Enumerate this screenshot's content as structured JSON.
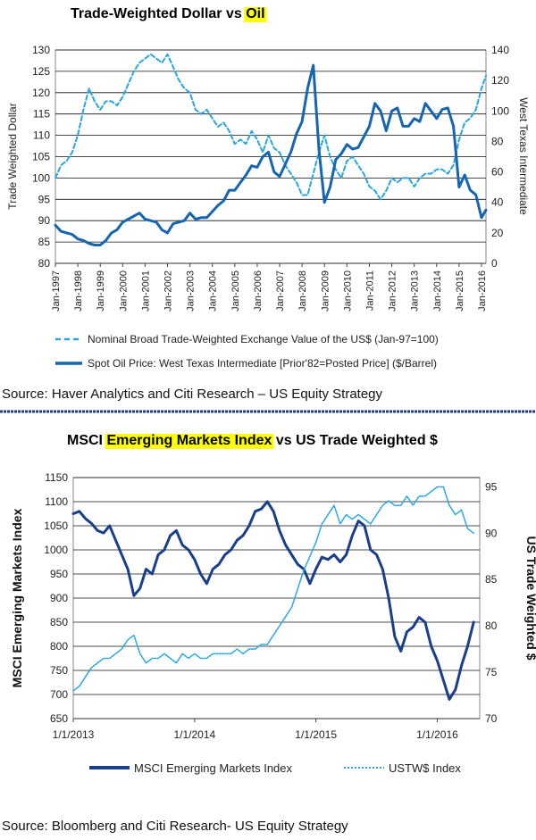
{
  "chart_data": [
    {
      "type": "line",
      "title_part1": "Trade-Weighted Dollar vs ",
      "title_highlight": "Oil",
      "highlight_color": "#ffff00",
      "ylabel": "Trade Weighted Dollar",
      "ylabel_right": "West Texas Intermediate",
      "ylim": [
        80,
        130
      ],
      "y_ticks": [
        "80",
        "85",
        "90",
        "95",
        "100",
        "105",
        "110",
        "115",
        "120",
        "125",
        "130"
      ],
      "ylim_right": [
        0,
        140
      ],
      "y_ticks_right": [
        "0",
        "20",
        "40",
        "60",
        "80",
        "100",
        "120",
        "140"
      ],
      "xlim": [
        1997,
        2016.2
      ],
      "x_tick_labels": [
        "Jan-1997",
        "Jan-1998",
        "Jan-1999",
        "Jan-2000",
        "Jan-2001",
        "Jan-2002",
        "Jan-2003",
        "Jan-2004",
        "Jan-2005",
        "Jan-2006",
        "Jan-2007",
        "Jan-2008",
        "Jan-2009",
        "Jan-2010",
        "Jan-2011",
        "Jan-2012",
        "Jan-2013",
        "Jan-2014",
        "Jan-2015",
        "Jan-2016"
      ],
      "grid": "horizontal",
      "legend_position": "bottom",
      "series": [
        {
          "name": "Nominal Broad Trade-Weighted Exchange Value of the US$ (Jan-97=100)",
          "axis": "left",
          "style": "dashed",
          "color": "#2aa6dc",
          "x": [
            1997.0,
            1997.25,
            1997.5,
            1997.75,
            1998.0,
            1998.25,
            1998.5,
            1998.75,
            1999.0,
            1999.25,
            1999.5,
            1999.75,
            2000.0,
            2000.25,
            2000.5,
            2000.75,
            2001.0,
            2001.25,
            2001.5,
            2001.75,
            2002.0,
            2002.25,
            2002.5,
            2002.75,
            2003.0,
            2003.25,
            2003.5,
            2003.75,
            2004.0,
            2004.25,
            2004.5,
            2004.75,
            2005.0,
            2005.25,
            2005.5,
            2005.75,
            2006.0,
            2006.25,
            2006.5,
            2006.75,
            2007.0,
            2007.25,
            2007.5,
            2007.75,
            2008.0,
            2008.25,
            2008.5,
            2008.75,
            2009.0,
            2009.25,
            2009.5,
            2009.75,
            2010.0,
            2010.25,
            2010.5,
            2010.75,
            2011.0,
            2011.25,
            2011.5,
            2011.75,
            2012.0,
            2012.25,
            2012.5,
            2012.75,
            2013.0,
            2013.25,
            2013.5,
            2013.75,
            2014.0,
            2014.25,
            2014.5,
            2014.75,
            2015.0,
            2015.25,
            2015.5,
            2015.75,
            2016.0,
            2016.2
          ],
          "values": [
            100,
            103,
            104,
            106,
            110,
            116,
            121,
            118,
            116,
            118,
            118,
            117,
            119,
            122,
            125,
            127,
            128,
            129,
            128,
            127,
            129,
            126,
            123,
            121,
            120,
            116,
            115,
            116,
            114,
            112,
            113,
            111,
            108,
            109,
            108,
            111,
            109,
            106,
            110,
            107,
            106,
            103,
            101,
            99,
            96,
            96,
            101,
            106,
            110,
            105,
            102,
            100,
            104,
            105,
            103,
            101,
            98,
            97,
            95,
            97,
            100,
            99,
            100,
            100,
            98,
            100,
            101,
            101,
            102,
            102,
            101,
            103,
            109,
            113,
            114,
            116,
            121,
            124
          ]
        },
        {
          "name": "Spot Oil Price: West Texas Intermediate [Prior'82=Posted Price] ($/Barrel)",
          "axis": "right",
          "style": "solid",
          "color": "#1565b0",
          "x": [
            1997.0,
            1997.25,
            1997.5,
            1997.75,
            1998.0,
            1998.25,
            1998.5,
            1998.75,
            1999.0,
            1999.25,
            1999.5,
            1999.75,
            2000.0,
            2000.25,
            2000.5,
            2000.75,
            2001.0,
            2001.25,
            2001.5,
            2001.75,
            2002.0,
            2002.25,
            2002.5,
            2002.75,
            2003.0,
            2003.25,
            2003.5,
            2003.75,
            2004.0,
            2004.25,
            2004.5,
            2004.75,
            2005.0,
            2005.25,
            2005.5,
            2005.75,
            2006.0,
            2006.25,
            2006.5,
            2006.75,
            2007.0,
            2007.25,
            2007.5,
            2007.75,
            2008.0,
            2008.25,
            2008.5,
            2008.75,
            2009.0,
            2009.25,
            2009.5,
            2009.75,
            2010.0,
            2010.25,
            2010.5,
            2010.75,
            2011.0,
            2011.25,
            2011.5,
            2011.75,
            2012.0,
            2012.25,
            2012.5,
            2012.75,
            2013.0,
            2013.25,
            2013.5,
            2013.75,
            2014.0,
            2014.25,
            2014.5,
            2014.75,
            2015.0,
            2015.25,
            2015.5,
            2015.75,
            2016.0,
            2016.2
          ],
          "values": [
            25,
            21,
            20,
            19,
            16,
            15,
            13,
            12,
            12,
            15,
            20,
            22,
            27,
            29,
            31,
            33,
            29,
            28,
            27,
            22,
            20,
            26,
            27,
            28,
            33,
            29,
            30,
            30,
            34,
            38,
            41,
            48,
            48,
            53,
            58,
            64,
            63,
            70,
            73,
            60,
            57,
            65,
            73,
            85,
            93,
            115,
            130,
            75,
            40,
            50,
            68,
            72,
            78,
            75,
            76,
            83,
            90,
            105,
            100,
            87,
            100,
            102,
            90,
            90,
            95,
            93,
            105,
            100,
            95,
            101,
            102,
            90,
            50,
            58,
            48,
            45,
            30,
            35
          ]
        }
      ]
    },
    {
      "type": "line",
      "title_part1": "MSCI ",
      "title_highlight": "Emerging Markets Index",
      "title_part2": " vs US Trade Weighted $",
      "highlight_color": "#ffff00",
      "ylabel": "MSCI Emerging Markets Index",
      "ylabel_right": "US Trade Weighted $",
      "ylim": [
        650,
        1150
      ],
      "y_ticks": [
        "650",
        "700",
        "750",
        "800",
        "850",
        "900",
        "950",
        "1000",
        "1050",
        "1100",
        "1150"
      ],
      "ylim_right": [
        70,
        96
      ],
      "y_ticks_right": [
        "70",
        "75",
        "80",
        "85",
        "90",
        "95"
      ],
      "xlim": [
        2013.0,
        2016.35
      ],
      "x_tick_labels": [
        "1/1/2013",
        "1/1/2014",
        "1/1/2015",
        "1/1/2016"
      ],
      "grid": "horizontal",
      "legend_position": "bottom",
      "series": [
        {
          "name": "MSCI Emerging Markets Index",
          "axis": "left",
          "style": "solid",
          "color": "#1a3f8a",
          "x": [
            2013.0,
            2013.05,
            2013.1,
            2013.15,
            2013.2,
            2013.25,
            2013.3,
            2013.35,
            2013.4,
            2013.45,
            2013.5,
            2013.55,
            2013.6,
            2013.65,
            2013.7,
            2013.75,
            2013.8,
            2013.85,
            2013.9,
            2013.95,
            2014.0,
            2014.05,
            2014.1,
            2014.15,
            2014.2,
            2014.25,
            2014.3,
            2014.35,
            2014.4,
            2014.45,
            2014.5,
            2014.55,
            2014.6,
            2014.65,
            2014.7,
            2014.75,
            2014.8,
            2014.85,
            2014.9,
            2014.95,
            2015.0,
            2015.05,
            2015.1,
            2015.15,
            2015.2,
            2015.25,
            2015.3,
            2015.35,
            2015.4,
            2015.45,
            2015.5,
            2015.55,
            2015.6,
            2015.65,
            2015.7,
            2015.75,
            2015.8,
            2015.85,
            2015.9,
            2015.95,
            2016.0,
            2016.05,
            2016.1,
            2016.15,
            2016.2,
            2016.25,
            2016.3
          ],
          "values": [
            1075,
            1080,
            1065,
            1055,
            1040,
            1035,
            1050,
            1020,
            990,
            960,
            905,
            920,
            960,
            950,
            990,
            1000,
            1030,
            1040,
            1010,
            1000,
            980,
            950,
            930,
            960,
            970,
            990,
            1000,
            1020,
            1030,
            1050,
            1080,
            1085,
            1100,
            1080,
            1040,
            1010,
            990,
            970,
            960,
            930,
            960,
            985,
            980,
            990,
            975,
            990,
            1030,
            1060,
            1050,
            1000,
            990,
            960,
            900,
            820,
            790,
            830,
            840,
            860,
            850,
            800,
            770,
            730,
            690,
            710,
            760,
            800,
            850
          ]
        },
        {
          "name": "USTW$ Index",
          "axis": "right",
          "style": "dotted",
          "color": "#29a8df",
          "x": [
            2013.0,
            2013.05,
            2013.1,
            2013.15,
            2013.2,
            2013.25,
            2013.3,
            2013.35,
            2013.4,
            2013.45,
            2013.5,
            2013.55,
            2013.6,
            2013.65,
            2013.7,
            2013.75,
            2013.8,
            2013.85,
            2013.9,
            2013.95,
            2014.0,
            2014.05,
            2014.1,
            2014.15,
            2014.2,
            2014.25,
            2014.3,
            2014.35,
            2014.4,
            2014.45,
            2014.5,
            2014.55,
            2014.6,
            2014.65,
            2014.7,
            2014.75,
            2014.8,
            2014.85,
            2014.9,
            2014.95,
            2015.0,
            2015.05,
            2015.1,
            2015.15,
            2015.2,
            2015.25,
            2015.3,
            2015.35,
            2015.4,
            2015.45,
            2015.5,
            2015.55,
            2015.6,
            2015.65,
            2015.7,
            2015.75,
            2015.8,
            2015.85,
            2015.9,
            2015.95,
            2016.0,
            2016.05,
            2016.1,
            2016.15,
            2016.2,
            2016.25,
            2016.3
          ],
          "values": [
            73.0,
            73.5,
            74.5,
            75.5,
            76.0,
            76.5,
            76.5,
            77.0,
            77.5,
            78.5,
            79.0,
            77.0,
            76.0,
            76.5,
            76.5,
            77.0,
            76.5,
            76.0,
            77.0,
            76.5,
            77.0,
            76.5,
            76.5,
            77.0,
            77.0,
            77.0,
            77.0,
            77.5,
            77.0,
            77.5,
            77.5,
            78.0,
            78.0,
            79.0,
            80.0,
            81.0,
            82.0,
            84.0,
            86.0,
            87.5,
            89.0,
            91.0,
            92.0,
            93.0,
            91.0,
            92.0,
            91.5,
            92.0,
            91.5,
            91.0,
            92.0,
            93.0,
            93.5,
            93.0,
            93.0,
            94.0,
            93.0,
            94.0,
            94.0,
            94.5,
            95.0,
            95.0,
            93.0,
            92.0,
            92.5,
            90.5,
            90.0
          ]
        }
      ]
    }
  ],
  "sources": {
    "top": "Source: Haver Analytics and Citi Research – US Equity Strategy",
    "bottom": "Source: Bloomberg and Citi Research- US Equity Strategy"
  },
  "colors": {
    "divider": "#1f3d7a"
  }
}
